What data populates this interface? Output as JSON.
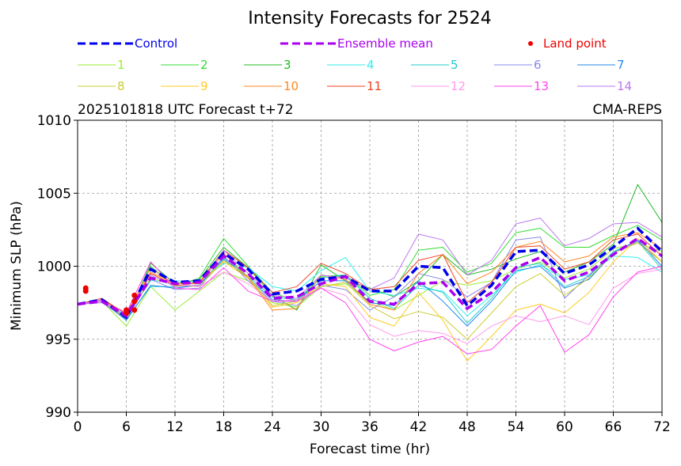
{
  "chart_data": {
    "type": "line",
    "title": "Intensity Forecasts for 2524",
    "subtitle_left": "2025101818 UTC Forecast t+72",
    "subtitle_right": "CMA-REPS",
    "xlabel": "Forecast time (hr)",
    "ylabel": "Minimum SLP (hPa)",
    "xlim": [
      0,
      72
    ],
    "ylim": [
      990,
      1010
    ],
    "xticks": [
      0,
      6,
      12,
      18,
      24,
      30,
      36,
      42,
      48,
      54,
      60,
      66,
      72
    ],
    "xtick_labels": [
      "0",
      "6",
      "12",
      "18",
      "24",
      "30",
      "36",
      "42",
      "48",
      "54",
      "60",
      "66",
      "72"
    ],
    "yticks": [
      990,
      995,
      1000,
      1005,
      1010
    ],
    "ytick_labels": [
      "990",
      "995",
      "1000",
      "1005",
      "1010"
    ],
    "grid": true,
    "legend_position": "top",
    "x": [
      0,
      3,
      6,
      9,
      12,
      15,
      18,
      21,
      24,
      27,
      30,
      33,
      36,
      39,
      42,
      45,
      48,
      51,
      54,
      57,
      60,
      63,
      66,
      69,
      72
    ],
    "series": [
      {
        "name": "1",
        "color": "#99ee33",
        "values": [
          997.4,
          997.6,
          995.9,
          998.6,
          997.0,
          998.3,
          999.6,
          999.0,
          997.5,
          997.2,
          998.6,
          998.8,
          997.6,
          997.0,
          998.0,
          999.0,
          998.7,
          999.0,
          999.8,
          1000.3,
          999.2,
          999.8,
          1001.2,
          1001.6,
          1001.0
        ]
      },
      {
        "name": "2",
        "color": "#33dd33",
        "values": [
          997.4,
          997.7,
          996.5,
          1000.0,
          998.6,
          999.2,
          1001.9,
          1000.0,
          998.2,
          997.6,
          999.3,
          999.4,
          998.0,
          998.4,
          1001.1,
          1001.3,
          999.6,
          1000.2,
          1002.3,
          1002.6,
          1001.3,
          1001.3,
          1002.1,
          1002.8,
          1001.8
        ]
      },
      {
        "name": "3",
        "color": "#22bb22",
        "values": [
          997.4,
          997.7,
          996.3,
          1000.2,
          998.8,
          999.1,
          1001.3,
          999.9,
          998.0,
          997.0,
          1000.1,
          999.0,
          998.5,
          997.9,
          999.0,
          1000.8,
          999.4,
          999.8,
          1000.5,
          1001.0,
          999.6,
          1000.3,
          1001.5,
          1005.6,
          1003.0
        ]
      },
      {
        "name": "4",
        "color": "#33eeee",
        "values": [
          997.4,
          997.7,
          996.6,
          999.0,
          999.0,
          998.9,
          1000.2,
          999.9,
          998.6,
          998.3,
          999.7,
          1000.6,
          998.3,
          998.0,
          998.5,
          998.3,
          996.6,
          998.0,
          999.6,
          1000.1,
          999.1,
          999.4,
          1000.7,
          1000.6,
          999.6
        ]
      },
      {
        "name": "5",
        "color": "#22cccc",
        "values": [
          997.4,
          997.7,
          996.4,
          998.6,
          998.6,
          998.7,
          1000.6,
          999.3,
          997.9,
          997.7,
          999.2,
          999.4,
          997.8,
          997.1,
          998.7,
          998.2,
          996.1,
          997.8,
          999.9,
          1000.2,
          998.6,
          999.3,
          1001.0,
          1001.7,
          999.8
        ]
      },
      {
        "name": "6",
        "color": "#8888ee",
        "values": [
          997.4,
          997.5,
          996.4,
          999.1,
          998.4,
          998.5,
          1000.7,
          999.0,
          997.6,
          997.3,
          998.7,
          998.4,
          997.0,
          997.9,
          999.5,
          999.1,
          997.9,
          998.9,
          1001.8,
          1002.0,
          997.8,
          999.4,
          1000.9,
          1001.7,
          1000.3
        ]
      },
      {
        "name": "7",
        "color": "#2288ee",
        "values": [
          997.4,
          997.6,
          996.3,
          998.7,
          998.5,
          998.7,
          1000.5,
          999.2,
          997.7,
          997.6,
          999.0,
          999.0,
          997.5,
          997.3,
          999.0,
          997.6,
          995.9,
          997.6,
          999.7,
          1000.0,
          998.5,
          999.1,
          1000.9,
          1001.8,
          1000.0
        ]
      },
      {
        "name": "8",
        "color": "#cccc33",
        "values": [
          997.4,
          997.6,
          996.4,
          999.2,
          998.7,
          998.6,
          1000.4,
          999.3,
          997.3,
          997.6,
          998.6,
          998.9,
          997.3,
          996.4,
          996.9,
          996.5,
          995.0,
          996.8,
          998.6,
          999.5,
          998.0,
          999.2,
          1000.9,
          1001.6,
          1000.3
        ]
      },
      {
        "name": "9",
        "color": "#ffcc22",
        "values": [
          997.4,
          997.7,
          996.5,
          999.9,
          998.6,
          998.9,
          1000.3,
          999.2,
          997.2,
          997.5,
          998.8,
          998.6,
          996.5,
          995.9,
          998.2,
          996.3,
          993.5,
          995.2,
          997.0,
          997.4,
          996.8,
          998.2,
          1000.3,
          1001.9,
          1000.3
        ]
      },
      {
        "name": "10",
        "color": "#ff8822",
        "values": [
          997.4,
          997.7,
          996.8,
          999.6,
          998.8,
          998.8,
          1000.9,
          999.2,
          997.0,
          997.1,
          999.4,
          999.1,
          997.4,
          997.0,
          999.5,
          1000.8,
          998.8,
          999.6,
          1001.3,
          1001.7,
          1000.3,
          1000.7,
          1002.0,
          1002.3,
          1001.2
        ]
      },
      {
        "name": "11",
        "color": "#ee4422",
        "values": [
          997.4,
          997.8,
          996.7,
          999.5,
          998.7,
          998.9,
          1001.1,
          999.9,
          998.2,
          998.6,
          1000.2,
          999.5,
          998.4,
          998.6,
          1000.4,
          1000.8,
          997.5,
          998.9,
          1001.3,
          1001.4,
          999.8,
          1000.3,
          1001.8,
          1002.2,
          1000.7
        ]
      },
      {
        "name": "12",
        "color": "#ff99ee",
        "values": [
          997.4,
          997.6,
          996.5,
          999.8,
          998.8,
          998.6,
          999.6,
          998.8,
          997.6,
          997.7,
          998.5,
          998.0,
          996.0,
          995.2,
          995.6,
          995.4,
          994.7,
          995.9,
          996.6,
          996.2,
          996.6,
          996.0,
          998.5,
          999.5,
          999.8
        ]
      },
      {
        "name": "13",
        "color": "#ff44ee",
        "values": [
          997.4,
          997.6,
          996.8,
          1000.3,
          998.5,
          998.4,
          999.9,
          998.3,
          997.6,
          997.6,
          998.5,
          997.5,
          995.0,
          994.2,
          994.8,
          995.2,
          994.0,
          994.3,
          995.9,
          997.3,
          994.1,
          995.3,
          997.9,
          999.6,
          1000.0
        ]
      },
      {
        "name": "14",
        "color": "#bb77ee",
        "values": [
          997.4,
          997.7,
          996.5,
          999.4,
          998.6,
          998.7,
          1001.1,
          999.5,
          998.0,
          997.8,
          999.4,
          999.2,
          998.4,
          999.2,
          1002.2,
          1001.8,
          999.4,
          1000.4,
          1002.9,
          1003.3,
          1001.4,
          1001.9,
          1002.9,
          1003.0,
          1002.0
        ]
      }
    ],
    "control": {
      "name": "Control",
      "color": "#0000ee",
      "values": [
        997.4,
        997.7,
        996.5,
        999.8,
        998.9,
        999.0,
        1000.9,
        999.8,
        998.1,
        998.3,
        999.1,
        999.3,
        998.3,
        998.3,
        1000.0,
        999.9,
        997.3,
        998.7,
        1001.0,
        1001.1,
        999.5,
        1000.1,
        1001.3,
        1002.6,
        1001.0
      ]
    },
    "ensemble_mean": {
      "name": "Ensemble mean",
      "color": "#aa00ee",
      "values": [
        997.4,
        997.6,
        996.6,
        999.2,
        998.8,
        998.9,
        1000.7,
        999.5,
        997.8,
        997.9,
        998.8,
        999.3,
        997.6,
        997.4,
        998.8,
        998.9,
        997.1,
        998.2,
        999.9,
        1000.6,
        999.0,
        999.6,
        1000.8,
        1001.9,
        1000.7
      ]
    },
    "land_points": {
      "name": "Land point",
      "color": "#ee0000",
      "points": [
        [
          1,
          998.3
        ],
        [
          1,
          998.5
        ],
        [
          6,
          996.8
        ],
        [
          6,
          997.0
        ],
        [
          7,
          997.0
        ],
        [
          7,
          997.6
        ],
        [
          7,
          998.0
        ]
      ]
    },
    "legend": {
      "control": "Control",
      "ensemble_mean": "Ensemble mean",
      "land_point": "Land point"
    }
  }
}
